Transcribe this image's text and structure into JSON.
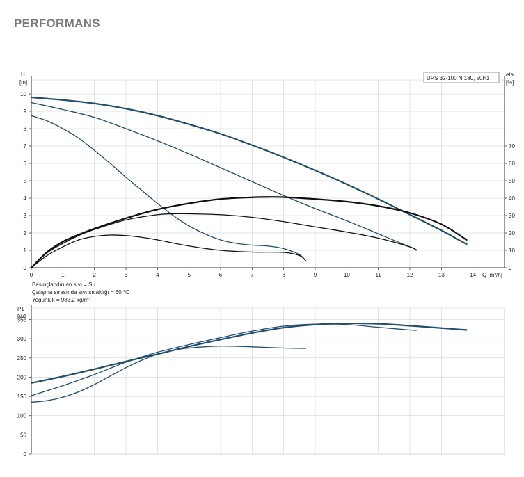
{
  "page": {
    "heading": "PERFORMANS"
  },
  "colors": {
    "curve": "#1f4e6e",
    "eff_curve": "#111111",
    "grid": "#c8c8c8",
    "axis": "#333333"
  },
  "chart_data": [
    {
      "type": "line",
      "title": "UPS 32-100 N 180, 50Hz",
      "ylabel_line1": "H",
      "ylabel_line2": "[m]",
      "y2label_line1": "eta",
      "y2label_line2": "[%]",
      "xlabel": "Q [m³/h]",
      "xlim": [
        0,
        15
      ],
      "ylim": [
        0,
        10.8
      ],
      "y2lim": [
        0,
        108
      ],
      "xticks": [
        0,
        1,
        2,
        3,
        4,
        5,
        6,
        7,
        8,
        9,
        10,
        11,
        12,
        13,
        14
      ],
      "yticks": [
        0,
        1,
        2,
        3,
        4,
        5,
        6,
        7,
        8,
        9,
        10
      ],
      "y2ticks": [
        0,
        10,
        20,
        30,
        40,
        50,
        60,
        70
      ],
      "grid": true,
      "notes": [
        "Basınçlandırılan sıvı = Su",
        "Çalışma sırasında sıvı sıcaklığı = 60 °C",
        "Yoğunluk = 983.2 kg/m³"
      ],
      "series": [
        {
          "axis": "left",
          "kind": "head",
          "width": 2.2,
          "x": [
            0,
            1,
            2,
            3,
            4,
            5,
            6,
            7,
            8,
            9,
            10,
            11,
            12,
            13,
            13.8
          ],
          "y": [
            9.8,
            9.65,
            9.45,
            9.15,
            8.75,
            8.25,
            7.7,
            7.05,
            6.35,
            5.6,
            4.8,
            3.95,
            3.05,
            2.15,
            1.35
          ]
        },
        {
          "axis": "left",
          "kind": "head",
          "width": 1.3,
          "x": [
            0,
            1,
            2,
            3,
            4,
            5,
            6,
            7,
            8,
            9,
            10,
            11,
            12,
            12.2
          ],
          "y": [
            9.5,
            9.1,
            8.65,
            8.0,
            7.3,
            6.55,
            5.75,
            4.95,
            4.15,
            3.4,
            2.7,
            1.95,
            1.2,
            1.05
          ]
        },
        {
          "axis": "left",
          "kind": "head",
          "width": 1.3,
          "x": [
            0,
            0.5,
            1,
            1.5,
            2,
            2.5,
            3,
            3.5,
            4,
            4.5,
            5,
            5.5,
            6,
            6.5,
            7,
            7.5,
            8,
            8.5,
            8.7
          ],
          "y": [
            8.75,
            8.45,
            8.0,
            7.45,
            6.75,
            6.0,
            5.2,
            4.45,
            3.7,
            3.0,
            2.4,
            1.95,
            1.6,
            1.4,
            1.3,
            1.25,
            1.1,
            0.75,
            0.4
          ]
        },
        {
          "axis": "right",
          "kind": "eta",
          "width": 2.2,
          "x": [
            0,
            0.5,
            1,
            1.5,
            2,
            3,
            4,
            5,
            6,
            7,
            7.5,
            8,
            9,
            10,
            11,
            12,
            13,
            13.8
          ],
          "y": [
            0,
            9,
            15,
            19,
            22.5,
            28.5,
            33.5,
            37,
            39.5,
            40.5,
            40.7,
            40.6,
            39.5,
            38,
            35.5,
            31.5,
            25,
            16
          ]
        },
        {
          "axis": "right",
          "kind": "eta",
          "width": 1.3,
          "x": [
            0,
            0.5,
            1,
            1.5,
            2,
            3,
            4,
            4.5,
            5,
            6,
            7,
            8,
            9,
            10,
            11,
            12,
            12.2
          ],
          "y": [
            0,
            8.5,
            14,
            18.5,
            22,
            27.5,
            30.5,
            31,
            31,
            30.5,
            29,
            26.5,
            23.5,
            20.5,
            17,
            12,
            10
          ]
        },
        {
          "axis": "right",
          "kind": "eta",
          "width": 1.3,
          "x": [
            0,
            0.5,
            1,
            1.5,
            2,
            2.5,
            3,
            3.5,
            4,
            5,
            6,
            7,
            8,
            8.5,
            8.7
          ],
          "y": [
            0,
            7,
            12,
            16,
            18,
            18.8,
            18.5,
            17.5,
            16,
            12.5,
            10,
            9,
            8.8,
            7,
            4
          ]
        }
      ]
    },
    {
      "type": "line",
      "ylabel_line1": "P1",
      "ylabel_line2": "[W]",
      "xlim": [
        0,
        15
      ],
      "ylim": [
        0,
        380
      ],
      "yticks": [
        0,
        50,
        100,
        150,
        200,
        250,
        300,
        350
      ],
      "grid": true,
      "series": [
        {
          "width": 2.2,
          "x": [
            0,
            1,
            2,
            3,
            4,
            5,
            6,
            7,
            8,
            9,
            10,
            11,
            12,
            13,
            13.8
          ],
          "y": [
            185,
            202,
            221,
            241,
            260,
            280,
            298,
            315,
            329,
            337,
            340,
            339,
            334,
            328,
            323
          ]
        },
        {
          "width": 1.3,
          "x": [
            0,
            1,
            2,
            3,
            4,
            5,
            6,
            7,
            8,
            9,
            10,
            11,
            12,
            12.2
          ],
          "y": [
            152,
            178,
            207,
            239,
            265,
            285,
            303,
            320,
            333,
            338,
            337,
            330,
            323,
            322
          ]
        },
        {
          "width": 1.3,
          "x": [
            0,
            0.5,
            1,
            1.5,
            2,
            2.5,
            3,
            3.5,
            4,
            4.5,
            5,
            6,
            7,
            8,
            8.7
          ],
          "y": [
            135,
            139,
            148,
            162,
            181,
            203,
            225,
            244,
            260,
            270,
            276,
            281,
            279,
            276,
            275
          ]
        }
      ]
    }
  ]
}
